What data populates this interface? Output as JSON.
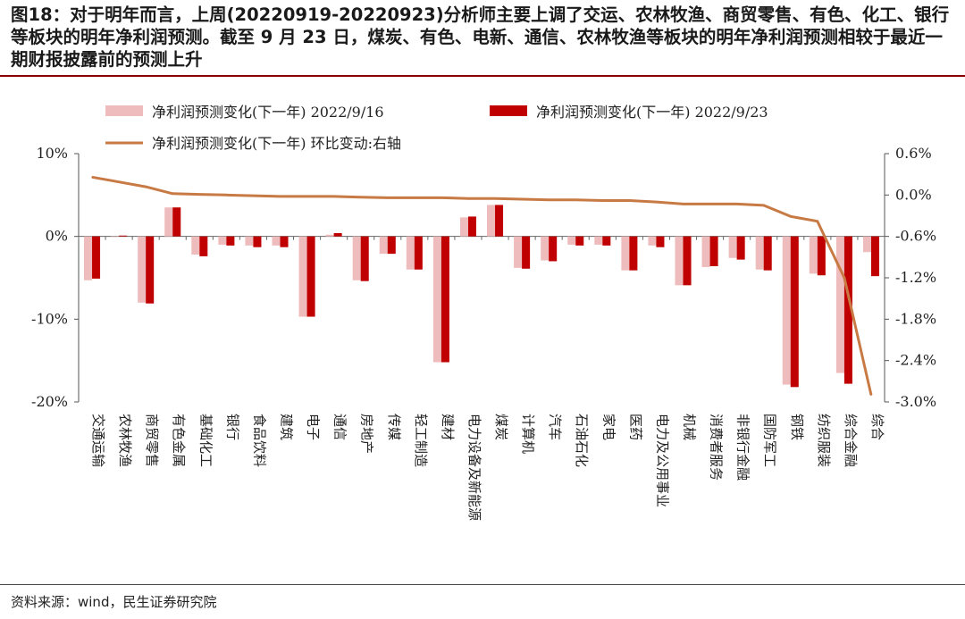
{
  "header": {
    "title": "图18：对于明年而言，上周(20220919-20220923)分析师主要上调了交运、农林牧渔、商贸零售、有色、化工、银行等板块的明年净利润预测。截至 9 月 23 日，煤炭、有色、电新、通信、农林牧渔等板块的明年净利润预测相较于最近一期财报披露前的预测上升"
  },
  "footer": {
    "source": "资料来源：wind，民生证券研究院"
  },
  "colors": {
    "series_a": "#eebcbc",
    "series_b": "#c00000",
    "line": "#c87a45",
    "rule": "#8b0000"
  },
  "chart_data": {
    "type": "bar",
    "categories": [
      "交通运输",
      "农林牧渔",
      "商贸零售",
      "有色金属",
      "基础化工",
      "银行",
      "食品饮料",
      "建筑",
      "电子",
      "通信",
      "房地产",
      "传媒",
      "轻工制造",
      "建材",
      "电力设备及新能源",
      "煤炭",
      "计算机",
      "汽车",
      "石油石化",
      "家电",
      "医药",
      "电力及公用事业",
      "机械",
      "消费者服务",
      "非银行金融",
      "国防军工",
      "钢铁",
      "纺织服装",
      "综合金融",
      "综合"
    ],
    "series": [
      {
        "name": "净利润预测变化(下一年) 2022/9/16",
        "axis": "left",
        "values": [
          -5.3,
          0.0,
          -8.0,
          3.5,
          -2.2,
          -1.0,
          -1.1,
          -1.1,
          -9.7,
          0.2,
          -5.3,
          -2.1,
          -4.0,
          -15.2,
          2.3,
          3.8,
          -3.8,
          -2.9,
          -1.0,
          -1.0,
          -4.1,
          -1.1,
          -5.9,
          -3.7,
          -2.6,
          -4.0,
          -17.9,
          -4.5,
          -16.5,
          -1.9
        ]
      },
      {
        "name": "净利润预测变化(下一年) 2022/9/23",
        "axis": "left",
        "values": [
          -5.1,
          0.1,
          -8.1,
          3.5,
          -2.4,
          -1.1,
          -1.3,
          -1.3,
          -9.7,
          0.4,
          -5.4,
          -2.1,
          -4.0,
          -15.2,
          2.4,
          3.8,
          -3.9,
          -3.0,
          -1.1,
          -1.1,
          -4.1,
          -1.3,
          -5.9,
          -3.6,
          -2.8,
          -4.1,
          -18.2,
          -4.7,
          -17.8,
          -4.8
        ]
      },
      {
        "name": "净利润预测变化(下一年) 环比变动:右轴",
        "axis": "right",
        "type": "line",
        "values": [
          0.26,
          0.19,
          0.12,
          0.02,
          0.01,
          0.0,
          -0.01,
          -0.02,
          -0.02,
          -0.02,
          -0.03,
          -0.04,
          -0.04,
          -0.04,
          -0.05,
          -0.05,
          -0.06,
          -0.07,
          -0.07,
          -0.08,
          -0.08,
          -0.1,
          -0.13,
          -0.13,
          -0.13,
          -0.15,
          -0.31,
          -0.38,
          -1.2,
          -2.9
        ]
      }
    ],
    "y_left": {
      "min": -20,
      "max": 10,
      "ticks": [
        10,
        0,
        -10,
        -20
      ],
      "tick_labels": [
        "10%",
        "0%",
        "-10%",
        "-20%"
      ]
    },
    "y_right": {
      "min": -3.0,
      "max": 0.6,
      "ticks": [
        0.6,
        0.0,
        -0.6,
        -1.2,
        -1.8,
        -2.4,
        -3.0
      ],
      "tick_labels": [
        "0.6%",
        "0.0%",
        "-0.6%",
        "-1.2%",
        "-1.8%",
        "-2.4%",
        "-3.0%"
      ]
    },
    "legend": [
      {
        "label": "净利润预测变化(下一年) 2022/9/16",
        "kind": "bar-light"
      },
      {
        "label": "净利润预测变化(下一年) 2022/9/23",
        "kind": "bar-dark"
      },
      {
        "label": "净利润预测变化(下一年) 环比变动:右轴",
        "kind": "line"
      }
    ],
    "legend_position": "top",
    "grid": false
  }
}
